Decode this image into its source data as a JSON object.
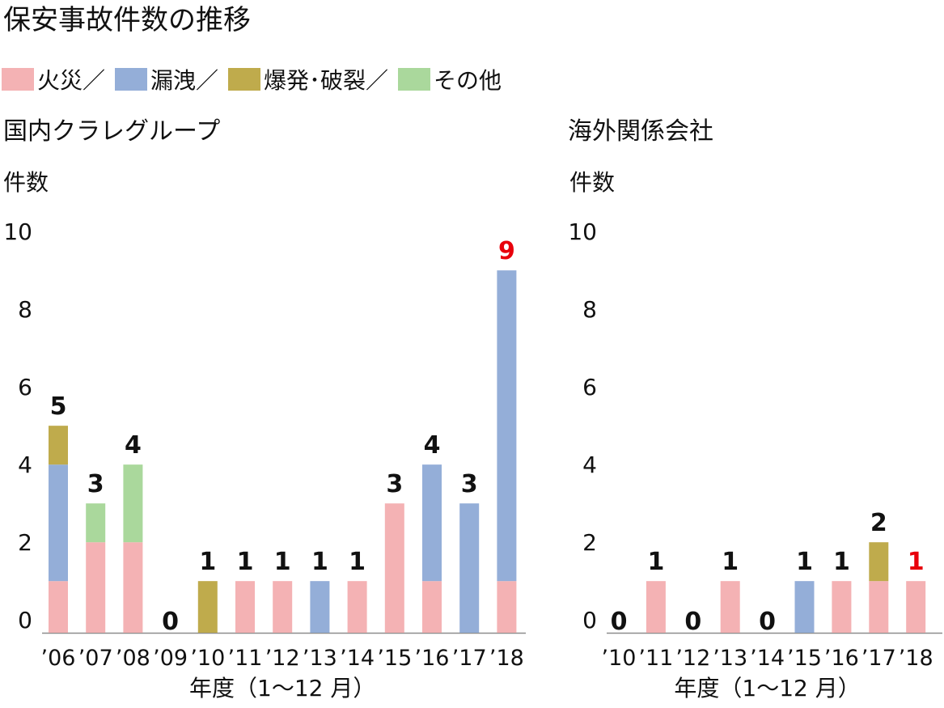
{
  "title": "保安事故件数の推移",
  "colors": {
    "fire": "#f4b2b4",
    "leak": "#94aed8",
    "explosion": "#bfab4c",
    "other": "#aad89c",
    "highlight": "#e8000b"
  },
  "legend": [
    {
      "key": "fire",
      "label": "火災／"
    },
    {
      "key": "leak",
      "label": "漏洩／"
    },
    {
      "key": "explosion",
      "label": "爆発･破裂／"
    },
    {
      "key": "other",
      "label": "その他"
    }
  ],
  "chart_data": [
    {
      "type": "bar",
      "stacked": true,
      "title": "国内クラレグループ",
      "ylabel": "件数",
      "xlabel": "年度（1～12 月）",
      "ylim": [
        0,
        10
      ],
      "yticks": [
        0,
        2,
        4,
        6,
        8,
        10
      ],
      "categories": [
        "’06",
        "’07",
        "’08",
        "’09",
        "’10",
        "’11",
        "’12",
        "’13",
        "’14",
        "’15",
        "’16",
        "’17",
        "’18"
      ],
      "series": [
        {
          "name": "火災",
          "key": "fire",
          "values": [
            1,
            2,
            2,
            0,
            0,
            1,
            1,
            0,
            1,
            3,
            1,
            0,
            1
          ]
        },
        {
          "name": "漏洩",
          "key": "leak",
          "values": [
            3,
            0,
            0,
            0,
            0,
            0,
            0,
            1,
            0,
            0,
            3,
            3,
            8
          ]
        },
        {
          "name": "爆発･破裂",
          "key": "explosion",
          "values": [
            1,
            0,
            0,
            0,
            1,
            0,
            0,
            0,
            0,
            0,
            0,
            0,
            0
          ]
        },
        {
          "name": "その他",
          "key": "other",
          "values": [
            0,
            1,
            2,
            0,
            0,
            0,
            0,
            0,
            0,
            0,
            0,
            0,
            0
          ]
        }
      ],
      "totals": [
        5,
        3,
        4,
        0,
        1,
        1,
        1,
        1,
        1,
        3,
        4,
        3,
        9
      ],
      "highlight_index": 12
    },
    {
      "type": "bar",
      "stacked": true,
      "title": "海外関係会社",
      "ylabel": "件数",
      "xlabel": "年度（1～12 月）",
      "ylim": [
        0,
        10
      ],
      "yticks": [
        0,
        2,
        4,
        6,
        8,
        10
      ],
      "categories": [
        "’10",
        "’11",
        "’12",
        "’13",
        "’14",
        "’15",
        "’16",
        "’17",
        "’18"
      ],
      "series": [
        {
          "name": "火災",
          "key": "fire",
          "values": [
            0,
            1,
            0,
            1,
            0,
            0,
            1,
            1,
            1
          ]
        },
        {
          "name": "漏洩",
          "key": "leak",
          "values": [
            0,
            0,
            0,
            0,
            0,
            1,
            0,
            0,
            0
          ]
        },
        {
          "name": "爆発･破裂",
          "key": "explosion",
          "values": [
            0,
            0,
            0,
            0,
            0,
            0,
            0,
            1,
            0
          ]
        },
        {
          "name": "その他",
          "key": "other",
          "values": [
            0,
            0,
            0,
            0,
            0,
            0,
            0,
            0,
            0
          ]
        }
      ],
      "totals": [
        0,
        1,
        0,
        1,
        0,
        1,
        1,
        2,
        1
      ],
      "highlight_index": 8
    }
  ]
}
